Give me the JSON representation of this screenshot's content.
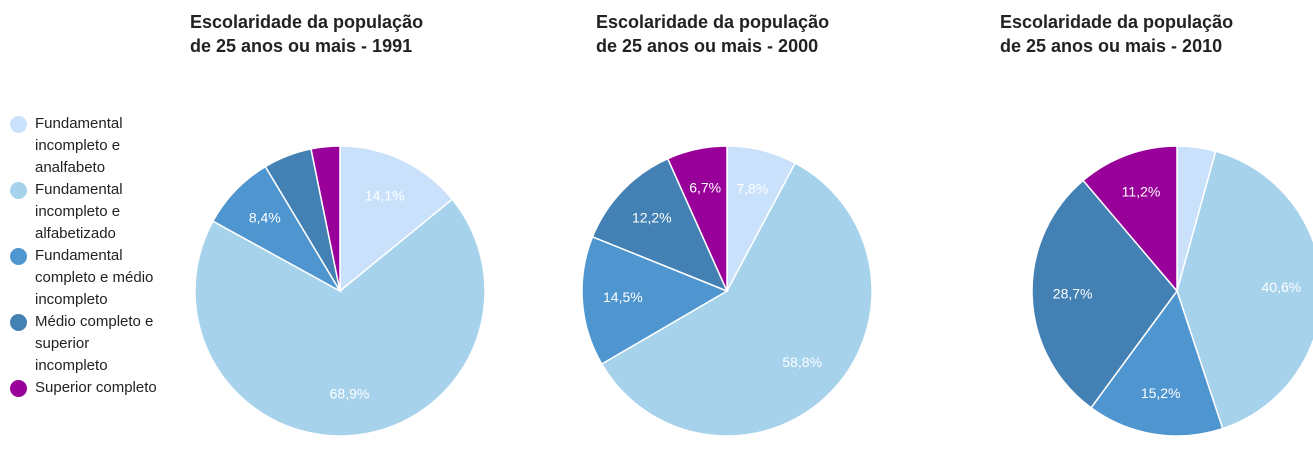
{
  "chart_data": [
    {
      "type": "pie",
      "title": [
        "Escolaridade da população",
        "de 25 anos ou mais - 1991"
      ],
      "categories": [
        "Fundamental incompleto e analfabeto",
        "Fundamental incompleto e alfabetizado",
        "Fundamental completo e médio incompleto",
        "Médio completo e superior incompleto",
        "Superior completo"
      ],
      "colors": [
        "#c9e1fb",
        "#a6d2ec",
        "#4f95d0",
        "#4380b4",
        "#990099"
      ],
      "values": [
        14.1,
        68.9,
        8.4,
        5.4,
        3.2
      ],
      "value_labels": [
        "14,1%",
        "68,9%",
        "8,4%",
        null,
        null
      ]
    },
    {
      "type": "pie",
      "title": [
        "Escolaridade da população",
        "de 25 anos ou mais - 2000"
      ],
      "values": [
        7.8,
        58.8,
        14.5,
        12.2,
        6.7
      ],
      "value_labels": [
        "7,8%",
        "58,8%",
        "14,5%",
        "12,2%",
        "6,7%"
      ]
    },
    {
      "type": "pie",
      "title": [
        "Escolaridade da população",
        "de 25 anos ou mais - 2010"
      ],
      "values": [
        4.3,
        40.6,
        15.2,
        28.7,
        11.2
      ],
      "value_labels": [
        null,
        "40,6%",
        "15,2%",
        "28,7%",
        "11,2%"
      ]
    }
  ]
}
